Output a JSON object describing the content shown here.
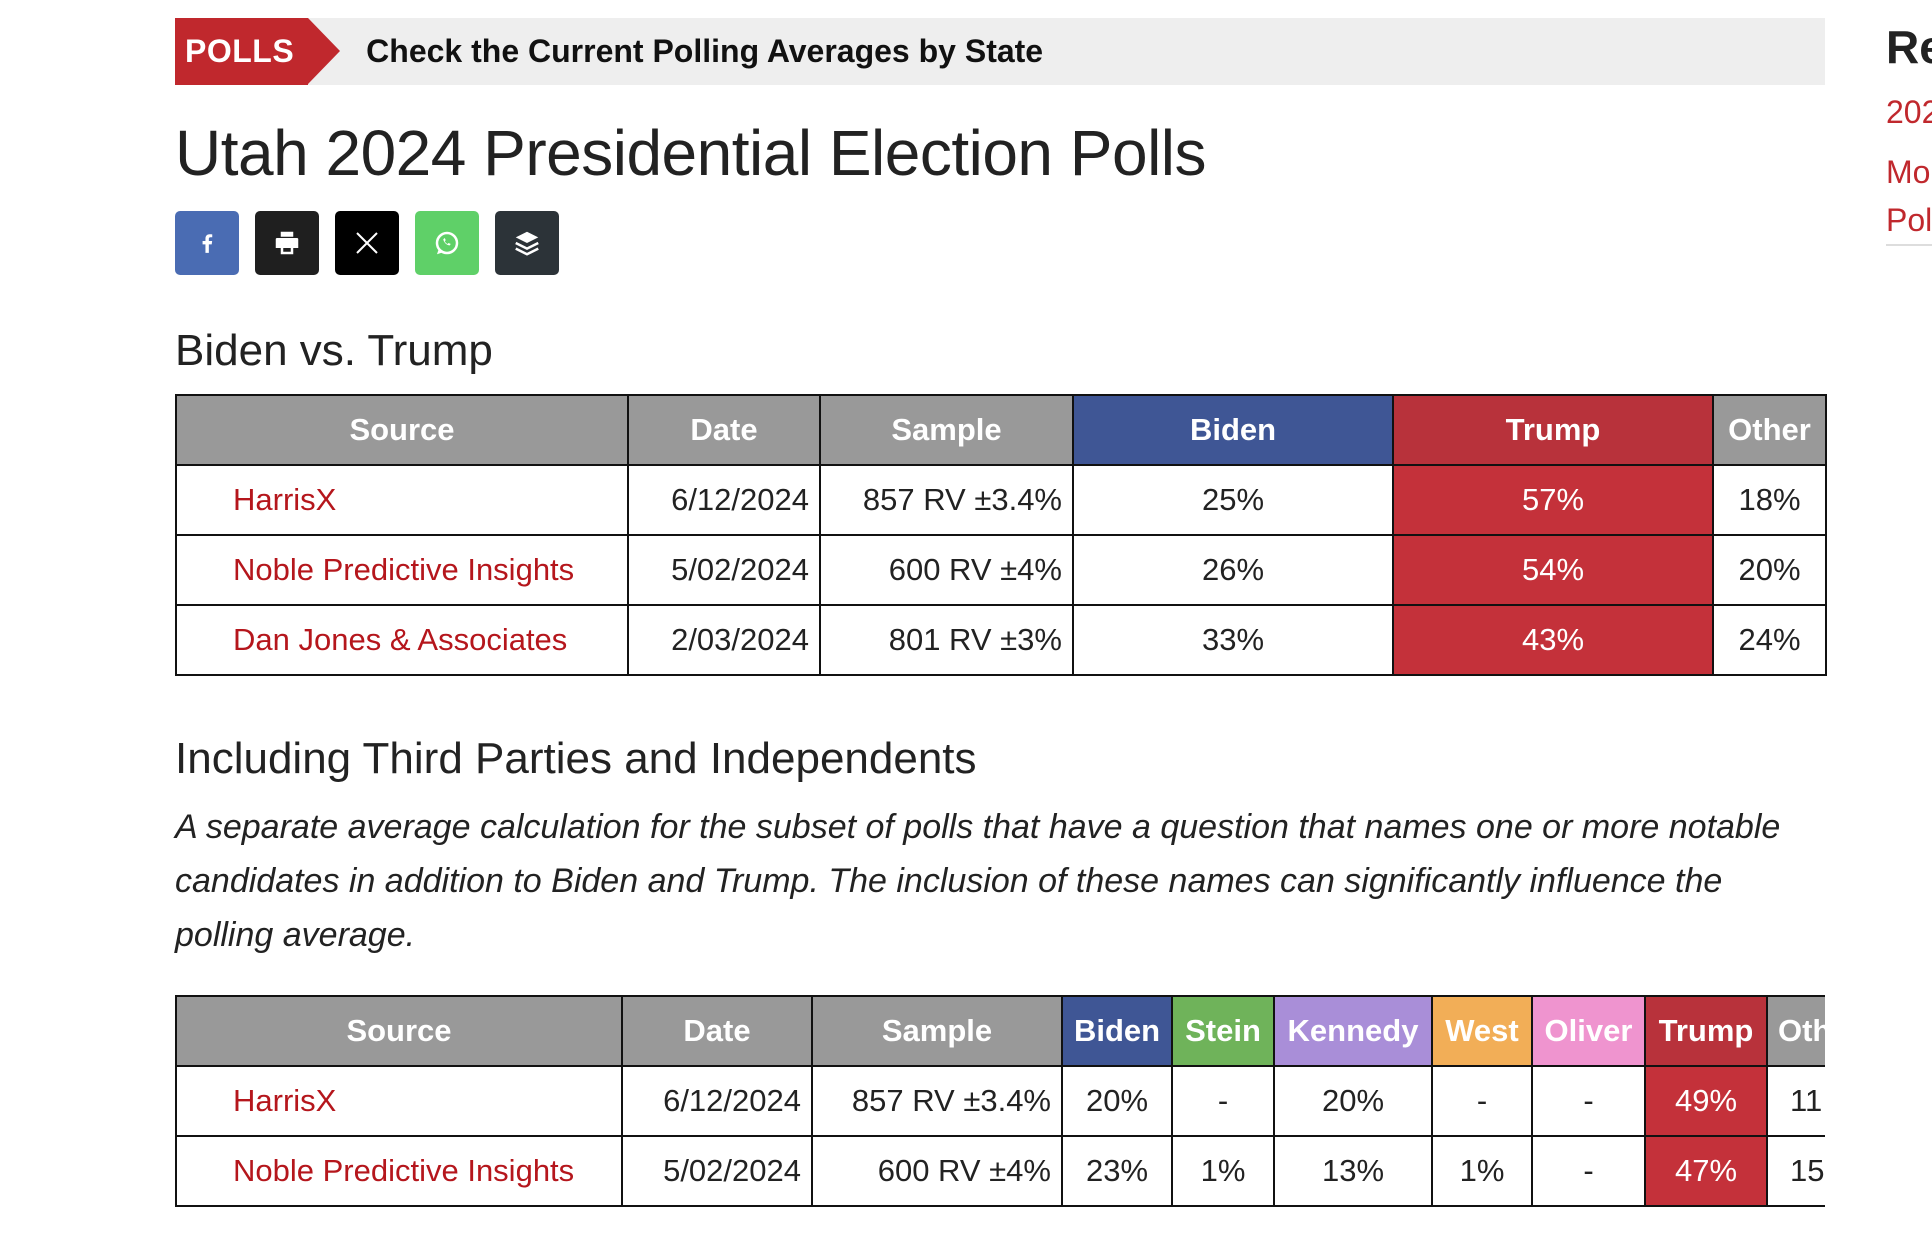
{
  "banner": {
    "tag": "POLLS",
    "text": "Check the Current Polling Averages by State"
  },
  "page_title": "Utah 2024 Presidential Election Polls",
  "share": [
    "facebook-icon",
    "print-icon",
    "x-icon",
    "whatsapp-icon",
    "buffer-icon"
  ],
  "section1": {
    "title": "Biden vs. Trump",
    "columns": [
      "Source",
      "Date",
      "Sample",
      "Biden",
      "Trump",
      "Other"
    ],
    "rows": [
      {
        "source": "HarrisX",
        "date": "6/12/2024",
        "sample": "857 RV ±3.4%",
        "biden": "25%",
        "trump": "57%",
        "other": "18%"
      },
      {
        "source": "Noble Predictive Insights",
        "date": "5/02/2024",
        "sample": "600 RV ±4%",
        "biden": "26%",
        "trump": "54%",
        "other": "20%"
      },
      {
        "source": "Dan Jones & Associates",
        "date": "2/03/2024",
        "sample": "801 RV ±3%",
        "biden": "33%",
        "trump": "43%",
        "other": "24%"
      }
    ]
  },
  "section2": {
    "title": "Including Third Parties and Independents",
    "description": "A separate average calculation for the subset of polls that have a question that names one or more notable candidates in addition to Biden and Trump. The inclusion of these names can significantly influence the polling average.",
    "columns": [
      "Source",
      "Date",
      "Sample",
      "Biden",
      "Stein",
      "Kennedy",
      "West",
      "Oliver",
      "Trump",
      "Oth"
    ],
    "rows": [
      {
        "source": "HarrisX",
        "date": "6/12/2024",
        "sample": "857 RV ±3.4%",
        "biden": "20%",
        "stein": "-",
        "kennedy": "20%",
        "west": "-",
        "oliver": "-",
        "trump": "49%",
        "other": "11"
      },
      {
        "source": "Noble Predictive Insights",
        "date": "5/02/2024",
        "sample": "600 RV ±4%",
        "biden": "23%",
        "stein": "1%",
        "kennedy": "13%",
        "west": "1%",
        "oliver": "-",
        "trump": "47%",
        "other": "15"
      }
    ]
  },
  "sidebar": {
    "title": "Re",
    "links": [
      "202",
      "Mo",
      "Pol"
    ]
  },
  "colors": {
    "accent_red": "#c0282d",
    "biden_blue": "#3f5695",
    "trump_red": "#c4313a"
  }
}
